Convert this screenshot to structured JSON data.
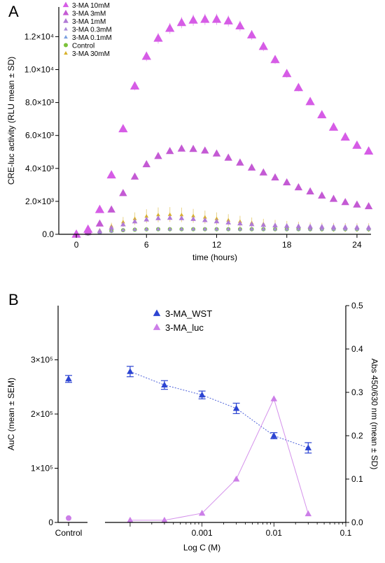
{
  "panels": {
    "a": {
      "letter": "A"
    },
    "b": {
      "letter": "B"
    }
  },
  "chart_data": [
    {
      "type": "line",
      "panel": "A",
      "xlabel": "time (hours)",
      "ylabel": "CRE-luc activity (RLU mean ± SD)",
      "xlim": [
        -1.5,
        25.2
      ],
      "ylim": [
        0,
        13800
      ],
      "x_ticks": [
        0,
        6,
        12,
        18,
        24
      ],
      "x_tick_labels": [
        "0",
        "6",
        "12",
        "18",
        "24"
      ],
      "y_ticks": [
        0,
        2000,
        4000,
        6000,
        8000,
        10000,
        12000
      ],
      "y_tick_labels": [
        "0.0",
        "2.0×10³",
        "4.0×10³",
        "6.0×10³",
        "8.0×10³",
        "1.0×10⁴",
        "1.2×10⁴"
      ],
      "x": [
        0,
        1,
        2,
        3,
        4,
        5,
        6,
        7,
        8,
        9,
        10,
        11,
        12,
        13,
        14,
        15,
        16,
        17,
        18,
        19,
        20,
        21,
        22,
        23,
        24,
        25
      ],
      "legend_position": "top-left",
      "grid": false,
      "series": [
        {
          "name": "3-MA 10mM",
          "color": "#d65ce6",
          "marker": "triangle",
          "size": 7,
          "values": [
            0,
            300,
            1500,
            3600,
            6400,
            9000,
            10800,
            11900,
            12500,
            12850,
            13000,
            13050,
            13050,
            12950,
            12650,
            12100,
            11400,
            10600,
            9750,
            8900,
            8050,
            7250,
            6500,
            5900,
            5400,
            5050
          ],
          "error": [
            0,
            40,
            100,
            160,
            220,
            260,
            290,
            320,
            330,
            340,
            340,
            340,
            340,
            330,
            320,
            300,
            280,
            260,
            240,
            220,
            200,
            180,
            160,
            150,
            140,
            130
          ]
        },
        {
          "name": "3-MA 3mM",
          "color": "#c45ad4",
          "marker": "triangle",
          "size": 6,
          "values": [
            0,
            150,
            650,
            1500,
            2500,
            3500,
            4250,
            4750,
            5050,
            5200,
            5180,
            5080,
            4900,
            4650,
            4350,
            4050,
            3750,
            3450,
            3150,
            2850,
            2600,
            2350,
            2150,
            1950,
            1800,
            1700
          ],
          "error": [
            0,
            20,
            40,
            60,
            80,
            100,
            110,
            120,
            120,
            120,
            120,
            120,
            110,
            110,
            100,
            100,
            90,
            90,
            80,
            80,
            70,
            70,
            60,
            60,
            60,
            50
          ]
        },
        {
          "name": "3-MA 1mM",
          "color": "#b07ad6",
          "marker": "triangle",
          "size": 4,
          "values": [
            0,
            60,
            200,
            400,
            600,
            780,
            900,
            980,
            1000,
            980,
            930,
            860,
            790,
            720,
            660,
            610,
            570,
            540,
            510,
            490,
            470,
            460,
            450,
            440,
            430,
            420
          ],
          "error": [
            0,
            20,
            40,
            60,
            80,
            90,
            100,
            110,
            110,
            110,
            110,
            100,
            100,
            90,
            90,
            80,
            80,
            80,
            70,
            70,
            70,
            70,
            70,
            70,
            70,
            70
          ]
        },
        {
          "name": "3-MA 0.3mM",
          "color": "#a98ad9",
          "marker": "triangle",
          "size": 3,
          "values": [
            0,
            40,
            120,
            200,
            260,
            300,
            320,
            330,
            330,
            330,
            330,
            330,
            330,
            330,
            330,
            330,
            330,
            330,
            330,
            330,
            330,
            330,
            330,
            330,
            330,
            330
          ],
          "error": [
            0,
            10,
            20,
            30,
            30,
            40,
            40,
            40,
            40,
            40,
            40,
            40,
            40,
            40,
            40,
            40,
            40,
            40,
            40,
            40,
            40,
            40,
            40,
            40,
            40,
            40
          ]
        },
        {
          "name": "3-MA 0.1mM",
          "color": "#7a9fe0",
          "marker": "triangle",
          "size": 3,
          "values": [
            0,
            40,
            120,
            200,
            260,
            290,
            310,
            320,
            320,
            320,
            320,
            320,
            320,
            320,
            320,
            320,
            320,
            320,
            320,
            320,
            320,
            320,
            320,
            320,
            320,
            320
          ],
          "error": [
            0,
            10,
            20,
            30,
            30,
            30,
            30,
            30,
            30,
            30,
            30,
            30,
            30,
            30,
            30,
            30,
            30,
            30,
            30,
            30,
            30,
            30,
            30,
            30,
            30,
            30
          ]
        },
        {
          "name": "Control",
          "color": "#7cc23a",
          "marker": "circle",
          "size": 3,
          "values": [
            0,
            40,
            120,
            200,
            250,
            280,
            300,
            310,
            310,
            310,
            310,
            310,
            310,
            310,
            310,
            310,
            310,
            310,
            310,
            310,
            310,
            310,
            310,
            310,
            310,
            310
          ],
          "error": [
            0,
            10,
            20,
            20,
            30,
            30,
            30,
            30,
            30,
            30,
            30,
            30,
            30,
            30,
            30,
            30,
            30,
            30,
            30,
            30,
            30,
            30,
            30,
            30,
            30,
            30
          ]
        },
        {
          "name": "3-MA 30mM",
          "color": "#d8b12a",
          "marker": "triangle",
          "size": 3,
          "values": [
            0,
            60,
            250,
            500,
            750,
            950,
            1100,
            1180,
            1200,
            1180,
            1120,
            1040,
            950,
            860,
            780,
            700,
            630,
            570,
            520,
            480,
            450,
            430,
            420,
            410,
            400,
            400
          ],
          "error": [
            0,
            50,
            100,
            200,
            300,
            380,
            420,
            450,
            450,
            440,
            420,
            400,
            380,
            360,
            340,
            320,
            310,
            300,
            290,
            280,
            270,
            270,
            270,
            270,
            270,
            270
          ]
        }
      ]
    },
    {
      "type": "line",
      "panel": "B",
      "xlabel": "Log C (M)",
      "ylabel": "AuC (mean ± SEM)",
      "ylabel_right": "Abs 450/630 nm (mean ± SD)",
      "x_scale": "log",
      "xlim": [
        5e-05,
        0.1
      ],
      "x_ticks": [
        0.001,
        0.01,
        0.1
      ],
      "x_tick_labels": [
        "0.001",
        "0.01",
        "0.1"
      ],
      "control_label": "Control",
      "ylim": [
        0,
        400000
      ],
      "y_ticks": [
        0,
        100000,
        200000,
        300000
      ],
      "y_tick_labels": [
        "0",
        "1×10⁵",
        "2×10⁵",
        "3×10⁵"
      ],
      "ylim_right": [
        0,
        0.5
      ],
      "y_ticks_right": [
        0,
        0.1,
        0.2,
        0.3,
        0.4,
        0.5
      ],
      "y_tick_labels_right": [
        "0.0",
        "0.1",
        "0.2",
        "0.3",
        "0.4",
        "0.5"
      ],
      "legend_position": "top-center",
      "grid": false,
      "series": [
        {
          "name": "3-MA_WST",
          "axis": "right",
          "color": "#2c44d2",
          "marker": "triangle",
          "control": {
            "value": 0.331,
            "error": 0.008
          },
          "x": [
            0.0001,
            0.0003,
            0.001,
            0.003,
            0.01,
            0.03
          ],
          "values": [
            0.348,
            0.317,
            0.294,
            0.263,
            0.2,
            0.172
          ],
          "error": [
            0.012,
            0.01,
            0.009,
            0.012,
            0.007,
            0.012
          ]
        },
        {
          "name": "3-MA_luc",
          "axis": "left",
          "color": "#cc7ee8",
          "marker": "triangle",
          "control": {
            "value": 8000,
            "error": 0
          },
          "x": [
            0.0001,
            0.0003,
            0.001,
            0.003,
            0.01,
            0.03
          ],
          "values": [
            4000,
            4000,
            17000,
            80000,
            228000,
            16000
          ],
          "error": [
            0,
            0,
            0,
            0,
            0,
            0
          ]
        }
      ]
    }
  ]
}
